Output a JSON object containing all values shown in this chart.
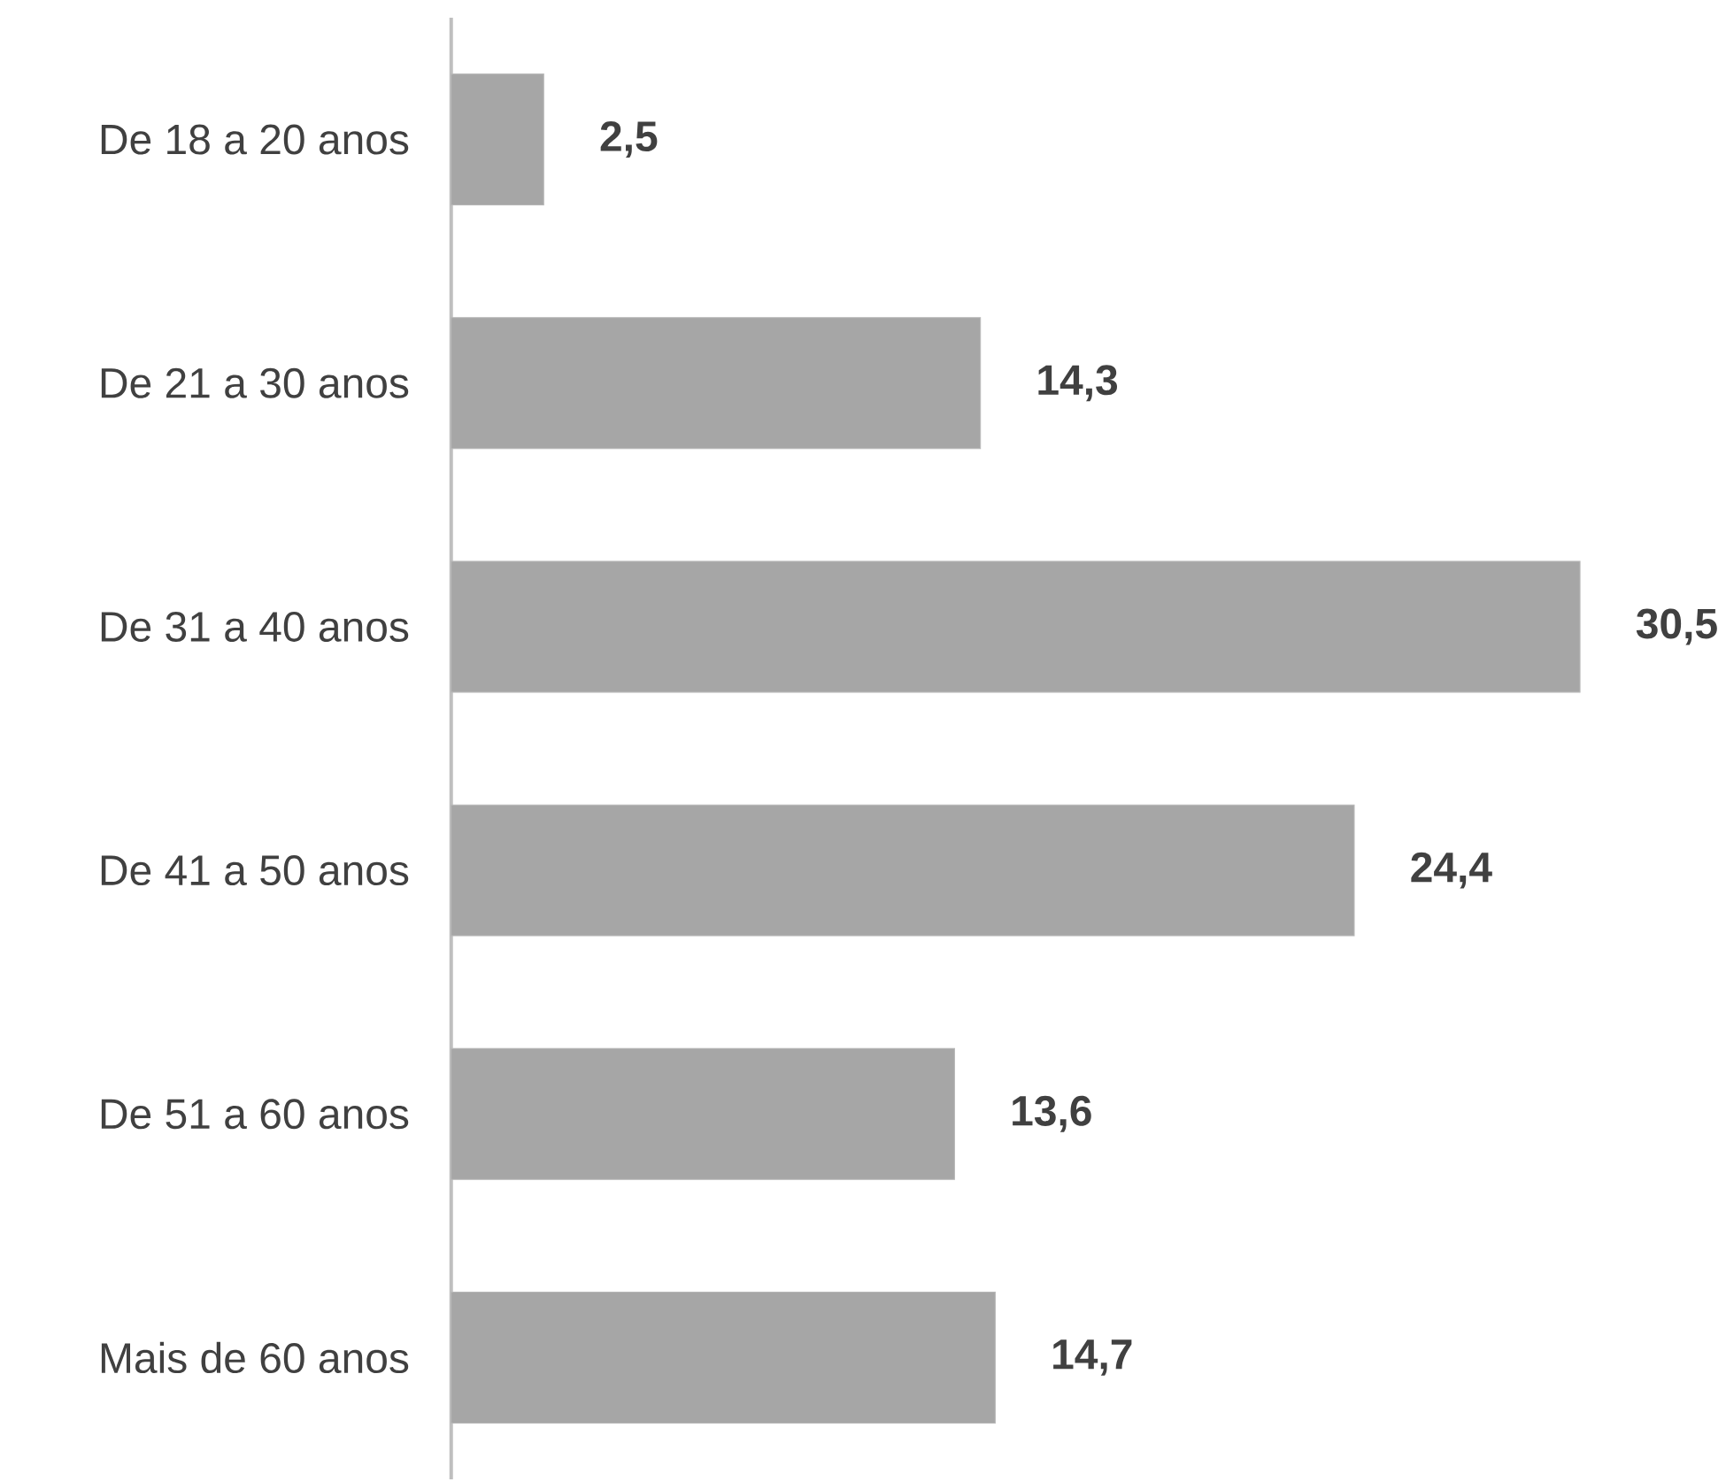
{
  "chart_data": {
    "type": "bar",
    "orientation": "horizontal",
    "categories": [
      "De 18 a 20 anos",
      "De 21 a 30 anos",
      "De 31 a 40 anos",
      "De 41 a 50 anos",
      "De 51 a 60 anos",
      "Mais de 60 anos"
    ],
    "values": [
      2.5,
      14.3,
      30.5,
      24.4,
      13.6,
      14.7
    ],
    "value_labels": [
      "2,5",
      "14,3",
      "30,5",
      "24,4",
      "13,6",
      "14,7"
    ],
    "color": "#a6a6a6"
  }
}
